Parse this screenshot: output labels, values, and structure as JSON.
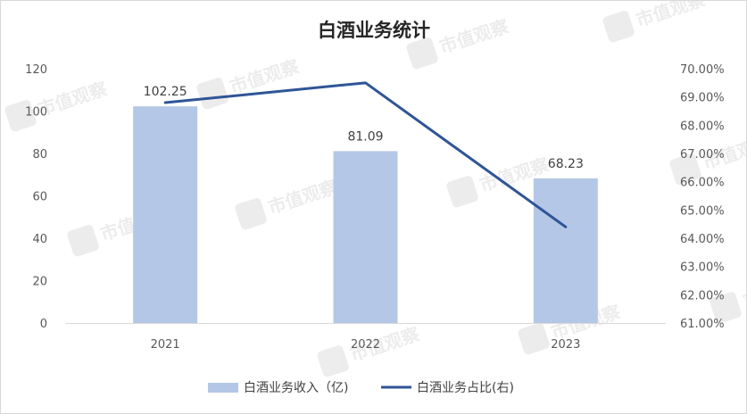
{
  "chart_data": {
    "type": "bar",
    "title": "白酒业务统计",
    "categories": [
      "2021",
      "2022",
      "2023"
    ],
    "series": [
      {
        "name": "白酒业务收入（亿)",
        "type": "bar",
        "axis": "left",
        "values": [
          102.25,
          81.09,
          68.23
        ],
        "labels": [
          "102.25",
          "81.09",
          "68.23"
        ],
        "color": "#b4c7e7"
      },
      {
        "name": "白酒业务占比(右)",
        "type": "line",
        "axis": "right",
        "values": [
          68.8,
          69.5,
          64.4
        ],
        "color": "#2f5597"
      }
    ],
    "y_left": {
      "min": 0,
      "max": 120,
      "step": 20,
      "ticks": [
        "0",
        "20",
        "40",
        "60",
        "80",
        "100",
        "120"
      ]
    },
    "y_right": {
      "min": 61,
      "max": 70,
      "step": 1,
      "ticks": [
        "61.00%",
        "62.00%",
        "63.00%",
        "64.00%",
        "65.00%",
        "66.00%",
        "67.00%",
        "68.00%",
        "69.00%",
        "70.00%"
      ]
    },
    "grid": false,
    "legend_position": "bottom",
    "watermark": "市值观察"
  }
}
